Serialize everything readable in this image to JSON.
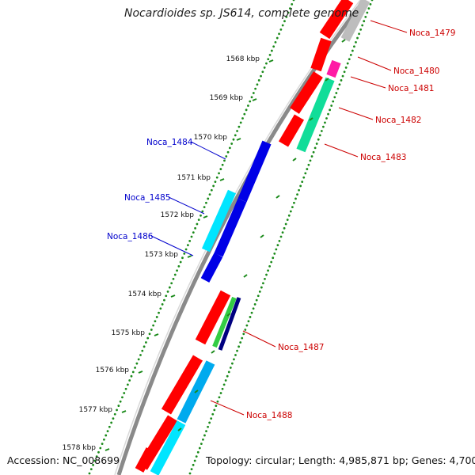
{
  "title": "Nocardioides sp. JS614, complete genome",
  "footer": {
    "accession": "Accession: NC_008699",
    "topology": "Topology: circular; Length: 4,985,871 bp; Genes: 4,700"
  },
  "colors": {
    "backbone": "#8a8a8a",
    "scale_dots": "#1a8a1a",
    "label_fwd": "#cc0000",
    "label_rev": "#0000cc",
    "red": "#ff0000",
    "blue": "#0000e6",
    "cyan": "#00e5ff",
    "magenta": "#ff1aa5",
    "mint": "#11dd99",
    "green": "#33cc44",
    "navy": "#000080",
    "grey": "#bdbdbd",
    "sky": "#00aaee"
  },
  "scale": {
    "unit": "kbp",
    "ticks": [
      "1568 kbp",
      "1569 kbp",
      "1570 kbp",
      "1571 kbp",
      "1572 kbp",
      "1573 kbp",
      "1574 kbp",
      "1575 kbp",
      "1576 kbp",
      "1577 kbp",
      "1578 kbp"
    ]
  },
  "gene_labels": [
    {
      "text": "Noca_1479",
      "strand": "forward"
    },
    {
      "text": "Noca_1480",
      "strand": "forward"
    },
    {
      "text": "Noca_1481",
      "strand": "forward"
    },
    {
      "text": "Noca_1482",
      "strand": "forward"
    },
    {
      "text": "Noca_1483",
      "strand": "forward"
    },
    {
      "text": "Noca_1484",
      "strand": "reverse"
    },
    {
      "text": "Noca_1485",
      "strand": "reverse"
    },
    {
      "text": "Noca_1486",
      "strand": "reverse"
    },
    {
      "text": "Noca_1487",
      "strand": "forward"
    },
    {
      "text": "Noca_1488",
      "strand": "forward"
    }
  ]
}
